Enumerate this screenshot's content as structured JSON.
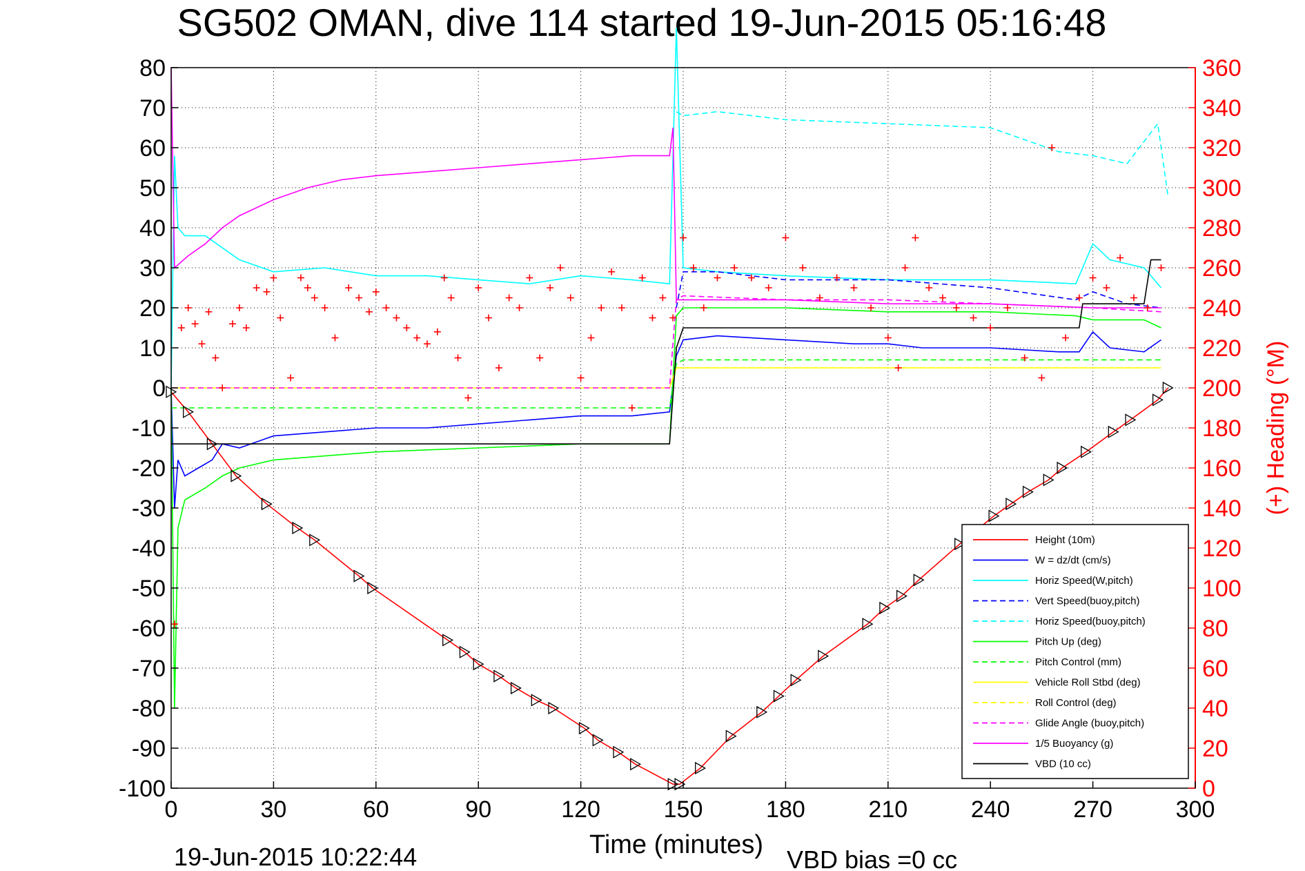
{
  "chart_data": {
    "type": "line",
    "title": "SG502 OMAN, dive 114 started 19-Jun-2015 05:16:48",
    "xlabel": "Time (minutes)",
    "ylabel_right": "(+) Heading (°M)",
    "xlim": [
      0,
      300
    ],
    "ylim_left": [
      -100,
      80
    ],
    "ylim_right": [
      0,
      360
    ],
    "x_ticks": [
      "0",
      "30",
      "60",
      "90",
      "120",
      "150",
      "180",
      "210",
      "240",
      "270",
      "300"
    ],
    "y_ticks_left": [
      "80",
      "70",
      "60",
      "50",
      "40",
      "30",
      "20",
      "10",
      "0",
      "-10",
      "-20",
      "-30",
      "-40",
      "-50",
      "-60",
      "-70",
      "-80",
      "-90",
      "-100"
    ],
    "y_ticks_right": [
      "360",
      "340",
      "320",
      "300",
      "280",
      "260",
      "240",
      "220",
      "200",
      "180",
      "160",
      "140",
      "120",
      "100",
      "80",
      "60",
      "40",
      "20",
      "0"
    ],
    "grid": true,
    "legend_position": "bottom-right",
    "footer_left": "19-Jun-2015 10:22:44",
    "footer_right": "VBD bias =0 cc",
    "colors": {
      "height": "#ff0000",
      "w": "#0000ff",
      "horiz_speed": "#00ffff",
      "vert_speed_buoy": "#0000ff",
      "horiz_speed_buoy": "#00ffff",
      "pitch": "#00ff00",
      "pitch_control": "#00ff00",
      "roll": "#ffff00",
      "roll_control": "#ffff00",
      "glide_angle": "#ff00ff",
      "buoyancy": "#ff00ff",
      "vbd": "#000000",
      "heading": "#ff0000"
    },
    "series": [
      {
        "name": "Height (10m)",
        "color": "#ff0000",
        "style": "solid",
        "x": [
          0,
          5,
          12,
          19,
          28,
          37,
          42,
          55,
          59,
          81,
          86,
          90,
          96,
          101,
          107,
          112,
          121,
          125,
          131,
          136,
          147,
          149,
          155,
          164,
          173,
          178,
          183,
          191,
          204,
          209,
          214,
          219,
          231,
          241,
          246,
          251,
          257,
          261,
          268,
          276,
          281,
          289,
          292
        ],
        "y": [
          -1,
          -6,
          -14,
          -22,
          -29,
          -35,
          -38,
          -47,
          -50,
          -63,
          -66,
          -69,
          -72,
          -75,
          -78,
          -80,
          -85,
          -88,
          -91,
          -94,
          -99,
          -99,
          -95,
          -87,
          -81,
          -77,
          -73,
          -67,
          -59,
          -55,
          -52,
          -48,
          -39,
          -32,
          -29,
          -26,
          -23,
          -20,
          -16,
          -11,
          -8,
          -3,
          0
        ]
      },
      {
        "name": "W = dz/dt (cm/s)",
        "color": "#0000ff",
        "style": "solid",
        "x": [
          0,
          1,
          2,
          4,
          8,
          12,
          15,
          20,
          30,
          45,
          60,
          75,
          90,
          105,
          120,
          135,
          146,
          148,
          150,
          160,
          180,
          200,
          210,
          220,
          240,
          260,
          266,
          270,
          275,
          285,
          290
        ],
        "y": [
          0,
          -30,
          -18,
          -22,
          -20,
          -18,
          -14,
          -15,
          -12,
          -11,
          -10,
          -10,
          -9,
          -8,
          -7,
          -7,
          -6,
          8,
          12,
          13,
          12,
          11,
          11,
          10,
          10,
          9,
          9,
          14,
          10,
          9,
          12
        ]
      },
      {
        "name": "Horiz Speed(W,pitch)",
        "color": "#00ffff",
        "style": "solid",
        "x": [
          0,
          1,
          2,
          4,
          10,
          20,
          30,
          45,
          60,
          75,
          90,
          105,
          120,
          135,
          146,
          148,
          150,
          160,
          180,
          210,
          240,
          265,
          270,
          275,
          285,
          290
        ],
        "y": [
          0,
          58,
          40,
          38,
          38,
          32,
          29,
          30,
          28,
          28,
          27,
          26,
          28,
          27,
          26,
          90,
          30,
          29,
          28,
          27,
          27,
          26,
          36,
          32,
          30,
          25
        ]
      },
      {
        "name": "Vert Speed(buoy,pitch)",
        "color": "#0000ff",
        "style": "dashed",
        "x": [
          148,
          150,
          160,
          180,
          210,
          240,
          265,
          270,
          280,
          290
        ],
        "y": [
          20,
          29,
          29,
          27,
          27,
          25,
          22,
          24,
          21,
          20
        ]
      },
      {
        "name": "Horiz Speed(buoy,pitch)",
        "color": "#00ffff",
        "style": "dashed",
        "x": [
          148,
          150,
          160,
          180,
          210,
          240,
          260,
          270,
          280,
          289,
          292
        ],
        "y": [
          69,
          68,
          69,
          67,
          66,
          65,
          59,
          58,
          56,
          66,
          48
        ]
      },
      {
        "name": "Pitch Up (deg)",
        "color": "#00ff00",
        "style": "solid",
        "x": [
          0,
          1,
          2,
          4,
          10,
          15,
          20,
          30,
          60,
          90,
          120,
          146,
          148,
          150,
          180,
          210,
          240,
          265,
          270,
          285,
          290
        ],
        "y": [
          0,
          -80,
          -35,
          -28,
          -25,
          -22,
          -20,
          -18,
          -16,
          -15,
          -14,
          -14,
          18,
          20,
          20,
          19,
          19,
          18,
          17,
          17,
          15
        ]
      },
      {
        "name": "Pitch Control (mm)",
        "color": "#00ff00",
        "style": "dashed",
        "x": [
          0,
          10,
          30,
          60,
          90,
          120,
          146,
          148,
          150,
          180,
          210,
          240,
          270,
          290
        ],
        "y": [
          -5,
          -5,
          -5,
          -5,
          -5,
          -5,
          -5,
          6,
          7,
          7,
          7,
          7,
          7,
          7
        ]
      },
      {
        "name": "Vehicle Roll Stbd (deg)",
        "color": "#ffff00",
        "style": "solid",
        "x": [
          0,
          146,
          148,
          150,
          180,
          210,
          240,
          270,
          290
        ],
        "y": [
          0,
          0,
          5,
          5,
          5,
          5,
          5,
          5,
          5
        ]
      },
      {
        "name": "Roll Control (deg)",
        "color": "#ffff00",
        "style": "dashed",
        "x": [
          0,
          146,
          148,
          150,
          180,
          210,
          240,
          270,
          290
        ],
        "y": [
          0,
          0,
          5,
          5,
          5,
          5,
          5,
          5,
          5
        ]
      },
      {
        "name": "Glide Angle (buoy,pitch)",
        "color": "#ff00ff",
        "style": "dashed",
        "x": [
          0,
          146,
          148,
          150,
          180,
          210,
          240,
          270,
          290
        ],
        "y": [
          0,
          0,
          22,
          23,
          22,
          22,
          21,
          20,
          19
        ]
      },
      {
        "name": "1/5 Buoyancy (g)",
        "color": "#ff00ff",
        "style": "solid",
        "x": [
          0,
          1,
          5,
          10,
          15,
          20,
          30,
          40,
          50,
          60,
          75,
          90,
          105,
          120,
          135,
          146,
          147,
          148,
          150,
          180,
          210,
          240,
          270,
          290
        ],
        "y": [
          80,
          30,
          33,
          36,
          40,
          43,
          47,
          50,
          52,
          53,
          54,
          55,
          56,
          57,
          58,
          58,
          65,
          22,
          22,
          22,
          21,
          21,
          20,
          20
        ]
      },
      {
        "name": "VBD (10 cc)",
        "color": "#000000",
        "style": "solid",
        "x": [
          0,
          2,
          20,
          28,
          60,
          90,
          120,
          146,
          148,
          150,
          160,
          175,
          180,
          200,
          210,
          240,
          266,
          267,
          280,
          285,
          287,
          290
        ],
        "y": [
          -14,
          -14,
          -14,
          -14,
          -14,
          -14,
          -14,
          -14,
          10,
          15,
          15,
          15,
          15,
          15,
          15,
          15,
          15,
          21,
          21,
          21,
          32,
          32
        ]
      }
    ],
    "heading_series": {
      "name": "(+) Heading",
      "color": "#ff0000",
      "marker": "+",
      "x": [
        1,
        3,
        5,
        7,
        9,
        11,
        13,
        15,
        18,
        20,
        22,
        25,
        28,
        30,
        32,
        35,
        38,
        40,
        42,
        45,
        48,
        52,
        55,
        58,
        60,
        63,
        66,
        69,
        72,
        75,
        78,
        80,
        82,
        84,
        87,
        90,
        93,
        96,
        99,
        102,
        105,
        108,
        111,
        114,
        117,
        120,
        123,
        126,
        129,
        132,
        135,
        138,
        141,
        144,
        147,
        150,
        153,
        156,
        160,
        165,
        170,
        175,
        180,
        185,
        190,
        195,
        200,
        205,
        210,
        213,
        215,
        218,
        222,
        226,
        230,
        235,
        240,
        245,
        250,
        255,
        258,
        262,
        266,
        270,
        274,
        278,
        282,
        286,
        290
      ],
      "y": [
        82,
        230,
        240,
        232,
        222,
        238,
        215,
        200,
        232,
        240,
        230,
        250,
        248,
        255,
        235,
        205,
        255,
        250,
        245,
        240,
        225,
        250,
        245,
        238,
        248,
        240,
        235,
        230,
        225,
        222,
        228,
        255,
        245,
        215,
        195,
        250,
        235,
        210,
        245,
        240,
        255,
        215,
        250,
        260,
        245,
        205,
        225,
        240,
        258,
        240,
        190,
        255,
        235,
        245,
        235,
        275,
        260,
        240,
        255,
        260,
        255,
        250,
        275,
        260,
        245,
        255,
        250,
        240,
        225,
        210,
        260,
        275,
        250,
        245,
        240,
        235,
        230,
        240,
        215,
        205,
        320,
        225,
        245,
        255,
        250,
        265,
        245,
        240,
        260
      ]
    },
    "markers": {
      "style": "triangle",
      "x": [
        0,
        5,
        12,
        19,
        28,
        37,
        42,
        55,
        59,
        81,
        86,
        90,
        96,
        101,
        107,
        112,
        121,
        125,
        131,
        136,
        147,
        149,
        155,
        164,
        173,
        178,
        183,
        191,
        204,
        209,
        214,
        219,
        231,
        241,
        246,
        251,
        257,
        261,
        268,
        276,
        281,
        289,
        292
      ],
      "y": [
        -1,
        -6,
        -14,
        -22,
        -29,
        -35,
        -38,
        -47,
        -50,
        -63,
        -66,
        -69,
        -72,
        -75,
        -78,
        -80,
        -85,
        -88,
        -91,
        -94,
        -99,
        -99,
        -95,
        -87,
        -81,
        -77,
        -73,
        -67,
        -59,
        -55,
        -52,
        -48,
        -39,
        -32,
        -29,
        -26,
        -23,
        -20,
        -16,
        -11,
        -8,
        -3,
        0
      ]
    }
  }
}
